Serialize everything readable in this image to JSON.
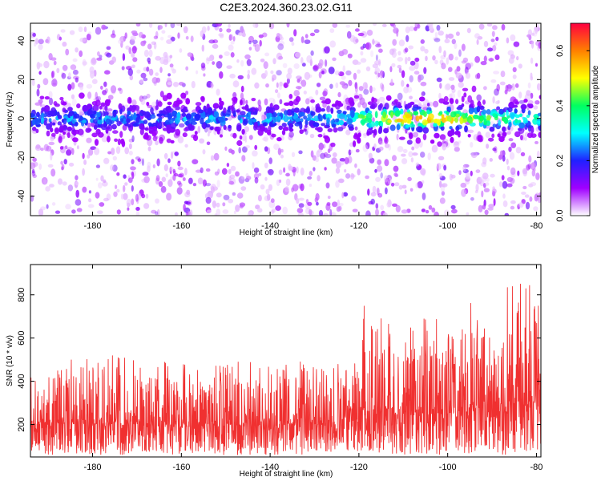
{
  "figure": {
    "title": "C2E3.2024.360.23.02.G11",
    "background": "#ffffff"
  },
  "chart_data": [
    {
      "type": "heatmap",
      "xlabel": "Height of straight line (km)",
      "ylabel": "Frequency (Hz)",
      "xlim": [
        -194,
        -79
      ],
      "ylim": [
        -50,
        49
      ],
      "x_ticks": [
        "-180",
        "-160",
        "-140",
        "-120",
        "-100",
        "-80"
      ],
      "x_tick_values": [
        -180,
        -160,
        -140,
        -120,
        -100,
        -80
      ],
      "y_ticks": [
        "40",
        "20",
        "0",
        "-20",
        "-40"
      ],
      "y_tick_values": [
        40,
        20,
        0,
        -20,
        -40
      ],
      "colorbar": {
        "label": "Normalized spectral amplitude",
        "range": [
          0,
          0.7
        ],
        "ticks": [
          "0.0",
          "0.2",
          "0.4",
          "0.6"
        ],
        "tick_values": [
          0.0,
          0.2,
          0.4,
          0.6
        ],
        "colormap": [
          "#ffffff",
          "#a000ff",
          "#2020ff",
          "#00ffff",
          "#00ff60",
          "#ffff00",
          "#ff8000",
          "#ff0040"
        ]
      },
      "band": {
        "center_frequency_hz": 0,
        "halfwidth_hz": 7,
        "peak_height_km": -106,
        "peak_amplitude": 0.6
      }
    },
    {
      "type": "line",
      "xlabel": "Height of straight line (km)",
      "ylabel": "SNR (10 * v/v)",
      "xlim": [
        -194,
        -79
      ],
      "ylim": [
        50,
        940
      ],
      "x_ticks": [
        "-180",
        "-160",
        "-140",
        "-120",
        "-100",
        "-80"
      ],
      "x_tick_values": [
        -180,
        -160,
        -140,
        -120,
        -100,
        -80
      ],
      "y_ticks": [
        "800",
        "600",
        "400",
        "200"
      ],
      "y_tick_values": [
        800,
        600,
        400,
        200
      ],
      "color": "#f03030",
      "series": [
        {
          "envelope": [
            {
              "x": -194,
              "low": 60,
              "mean": 200,
              "high": 450
            },
            {
              "x": -180,
              "low": 60,
              "mean": 200,
              "high": 540
            },
            {
              "x": -160,
              "low": 60,
              "mean": 190,
              "high": 480
            },
            {
              "x": -140,
              "low": 60,
              "mean": 195,
              "high": 500
            },
            {
              "x": -125,
              "low": 60,
              "mean": 200,
              "high": 480
            },
            {
              "x": -120,
              "low": 70,
              "mean": 210,
              "high": 500
            },
            {
              "x": -119,
              "low": 80,
              "mean": 260,
              "high": 830
            },
            {
              "x": -110,
              "low": 60,
              "mean": 240,
              "high": 680
            },
            {
              "x": -100,
              "low": 60,
              "mean": 250,
              "high": 720
            },
            {
              "x": -85,
              "low": 60,
              "mean": 270,
              "high": 870
            },
            {
              "x": -80,
              "low": 80,
              "mean": 300,
              "high": 900
            },
            {
              "x": -79,
              "low": 100,
              "mean": 400,
              "high": 940
            }
          ]
        }
      ]
    }
  ]
}
